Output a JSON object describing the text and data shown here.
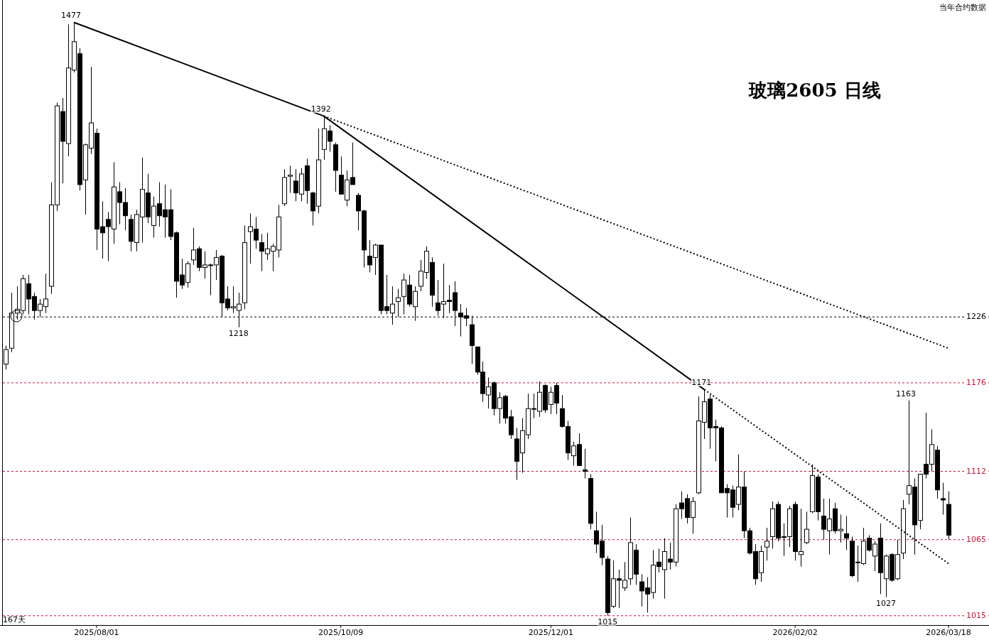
{
  "chart_data": {
    "type": "candlestick",
    "title": "玻璃2605 日线",
    "log": true,
    "ylim": [
      1009,
      1498
    ],
    "yticks": [
      1015,
      1065,
      1112,
      1176,
      1226
    ],
    "categories": [
      null,
      null,
      null,
      null,
      null,
      null,
      null,
      null,
      null,
      null,
      null,
      null,
      null,
      null,
      null,
      null,
      "2025/08/01",
      null,
      null,
      null,
      null,
      null,
      null,
      null,
      null,
      null,
      null,
      null,
      null,
      null,
      null,
      null,
      null,
      null,
      null,
      null,
      null,
      null,
      null,
      null,
      null,
      null,
      null,
      null,
      null,
      null,
      null,
      null,
      null,
      null,
      null,
      null,
      null,
      null,
      null,
      null,
      null,
      null,
      null,
      "2025/10/09",
      null,
      null,
      null,
      null,
      null,
      null,
      null,
      null,
      null,
      null,
      null,
      null,
      null,
      null,
      null,
      null,
      null,
      null,
      null,
      null,
      null,
      null,
      null,
      null,
      null,
      null,
      null,
      null,
      null,
      null,
      null,
      null,
      null,
      null,
      null,
      null,
      "2025/12/01",
      null,
      null,
      null,
      null,
      null,
      null,
      null,
      null,
      null,
      null,
      null,
      null,
      null,
      null,
      null,
      null,
      null,
      null,
      null,
      null,
      null,
      null,
      null,
      null,
      null,
      null,
      null,
      null,
      null,
      null,
      null,
      null,
      null,
      null,
      null,
      null,
      null,
      null,
      null,
      null,
      null,
      null,
      "2026/02/02",
      null,
      null,
      null,
      null,
      null,
      null,
      null,
      null,
      null,
      null,
      null,
      null,
      null,
      null,
      null,
      null,
      null,
      null,
      null,
      null,
      null,
      null,
      null,
      null,
      null,
      null,
      "2026/03/18"
    ],
    "ohlc": [
      [
        1190,
        1204,
        1186,
        1201
      ],
      [
        1202,
        1245,
        1199,
        1229
      ],
      [
        1229,
        1250,
        1224,
        1232
      ],
      [
        1231,
        1259,
        1228,
        1256
      ],
      [
        1252,
        1259,
        1228,
        1240
      ],
      [
        1242,
        1245,
        1224,
        1231
      ],
      [
        1231,
        1240,
        1226,
        1236
      ],
      [
        1234,
        1260,
        1229,
        1240
      ],
      [
        1250,
        1335,
        1244,
        1316
      ],
      [
        1316,
        1404,
        1311,
        1401
      ],
      [
        1396,
        1408,
        1334,
        1370
      ],
      [
        1368,
        1475,
        1357,
        1435
      ],
      [
        1433,
        1477,
        1431,
        1459
      ],
      [
        1448,
        1453,
        1328,
        1333
      ],
      [
        1337,
        1368,
        1308,
        1367
      ],
      [
        1364,
        1436,
        1359,
        1386
      ],
      [
        1377,
        1381,
        1279,
        1296
      ],
      [
        1298,
        1319,
        1272,
        1293
      ],
      [
        1304,
        1310,
        1270,
        1298
      ],
      [
        1296,
        1352,
        1284,
        1331
      ],
      [
        1327,
        1335,
        1300,
        1318
      ],
      [
        1318,
        1330,
        1295,
        1307
      ],
      [
        1304,
        1308,
        1278,
        1286
      ],
      [
        1285,
        1312,
        1278,
        1308
      ],
      [
        1306,
        1356,
        1285,
        1329
      ],
      [
        1326,
        1342,
        1301,
        1306
      ],
      [
        1299,
        1323,
        1289,
        1315
      ],
      [
        1317,
        1335,
        1298,
        1307
      ],
      [
        1312,
        1333,
        1289,
        1306
      ],
      [
        1312,
        1329,
        1287,
        1290
      ],
      [
        1293,
        1294,
        1241,
        1254
      ],
      [
        1259,
        1272,
        1248,
        1251
      ],
      [
        1253,
        1270,
        1249,
        1268
      ],
      [
        1271,
        1297,
        1267,
        1279
      ],
      [
        1280,
        1282,
        1262,
        1265
      ],
      [
        1265,
        1278,
        1256,
        1267
      ],
      [
        1267,
        1268,
        1243,
        1267
      ],
      [
        1267,
        1279,
        1255,
        1273
      ],
      [
        1274,
        1275,
        1226,
        1237
      ],
      [
        1240,
        1250,
        1231,
        1233
      ],
      [
        1233,
        1250,
        1229,
        1234
      ],
      [
        1231,
        1245,
        1218,
        1236
      ],
      [
        1237,
        1299,
        1232,
        1285
      ],
      [
        1294,
        1309,
        1268,
        1298
      ],
      [
        1296,
        1306,
        1280,
        1287
      ],
      [
        1285,
        1292,
        1262,
        1278
      ],
      [
        1276,
        1293,
        1271,
        1280
      ],
      [
        1278,
        1284,
        1262,
        1282
      ],
      [
        1279,
        1316,
        1273,
        1306
      ],
      [
        1317,
        1346,
        1315,
        1339
      ],
      [
        1340,
        1349,
        1326,
        1341
      ],
      [
        1336,
        1346,
        1319,
        1326
      ],
      [
        1325,
        1347,
        1319,
        1342
      ],
      [
        1349,
        1355,
        1317,
        1328
      ],
      [
        1326,
        1327,
        1299,
        1311
      ],
      [
        1315,
        1381,
        1309,
        1354
      ],
      [
        1363,
        1392,
        1354,
        1381
      ],
      [
        1379,
        1384,
        1361,
        1370
      ],
      [
        1367,
        1369,
        1327,
        1345
      ],
      [
        1341,
        1357,
        1325,
        1325
      ],
      [
        1320,
        1345,
        1315,
        1337
      ],
      [
        1339,
        1369,
        1333,
        1333
      ],
      [
        1324,
        1326,
        1295,
        1311
      ],
      [
        1311,
        1312,
        1265,
        1279
      ],
      [
        1274,
        1287,
        1261,
        1267
      ],
      [
        1273,
        1284,
        1259,
        1283
      ],
      [
        1283,
        1283,
        1228,
        1231
      ],
      [
        1234,
        1259,
        1228,
        1231
      ],
      [
        1229,
        1250,
        1220,
        1236
      ],
      [
        1238,
        1248,
        1226,
        1241
      ],
      [
        1242,
        1260,
        1228,
        1255
      ],
      [
        1251,
        1259,
        1234,
        1236
      ],
      [
        1234,
        1250,
        1223,
        1246
      ],
      [
        1250,
        1271,
        1246,
        1262
      ],
      [
        1261,
        1282,
        1256,
        1278
      ],
      [
        1269,
        1273,
        1234,
        1243
      ],
      [
        1237,
        1255,
        1227,
        1231
      ],
      [
        1236,
        1268,
        1225,
        1238
      ],
      [
        1239,
        1251,
        1229,
        1238
      ],
      [
        1245,
        1254,
        1219,
        1231
      ],
      [
        1229,
        1236,
        1211,
        1226
      ],
      [
        1227,
        1233,
        1219,
        1225
      ],
      [
        1220,
        1227,
        1190,
        1204
      ],
      [
        1203,
        1203,
        1182,
        1184
      ],
      [
        1184,
        1192,
        1162,
        1168
      ],
      [
        1167,
        1180,
        1157,
        1173
      ],
      [
        1176,
        1177,
        1152,
        1157
      ],
      [
        1157,
        1169,
        1146,
        1165
      ],
      [
        1166,
        1167,
        1146,
        1150
      ],
      [
        1151,
        1156,
        1135,
        1138
      ],
      [
        1135,
        1143,
        1106,
        1119
      ],
      [
        1125,
        1150,
        1111,
        1141
      ],
      [
        1138,
        1168,
        1135,
        1157
      ],
      [
        1157,
        1168,
        1150,
        1157
      ],
      [
        1155,
        1177,
        1151,
        1169
      ],
      [
        1174,
        1175,
        1154,
        1156
      ],
      [
        1160,
        1173,
        1153,
        1169
      ],
      [
        1174,
        1176,
        1153,
        1161
      ],
      [
        1157,
        1167,
        1143,
        1144
      ],
      [
        1144,
        1148,
        1120,
        1125
      ],
      [
        1123,
        1133,
        1116,
        1130
      ],
      [
        1131,
        1139,
        1116,
        1116
      ],
      [
        1113,
        1128,
        1107,
        1112
      ],
      [
        1107,
        1110,
        1072,
        1076
      ],
      [
        1071,
        1084,
        1056,
        1062
      ],
      [
        1064,
        1075,
        1048,
        1053
      ],
      [
        1052,
        1054,
        1015,
        1017
      ],
      [
        1021,
        1051,
        1020,
        1039
      ],
      [
        1039,
        1045,
        1020,
        1038
      ],
      [
        1033,
        1050,
        1031,
        1038
      ],
      [
        1039,
        1080,
        1035,
        1063
      ],
      [
        1058,
        1062,
        1035,
        1042
      ],
      [
        1037,
        1042,
        1021,
        1031
      ],
      [
        1033,
        1040,
        1017,
        1029
      ],
      [
        1030,
        1058,
        1026,
        1048
      ],
      [
        1050,
        1059,
        1043,
        1047
      ],
      [
        1045,
        1066,
        1026,
        1057
      ],
      [
        1052,
        1063,
        1045,
        1050
      ],
      [
        1050,
        1089,
        1047,
        1086
      ],
      [
        1090,
        1098,
        1079,
        1086
      ],
      [
        1093,
        1096,
        1076,
        1080
      ],
      [
        1080,
        1094,
        1069,
        1091
      ],
      [
        1097,
        1166,
        1096,
        1148
      ],
      [
        1147,
        1171,
        1135,
        1162
      ],
      [
        1164,
        1167,
        1128,
        1143
      ],
      [
        1144,
        1149,
        1119,
        1143
      ],
      [
        1143,
        1144,
        1097,
        1097
      ],
      [
        1100,
        1103,
        1080,
        1097
      ],
      [
        1099,
        1102,
        1080,
        1087
      ],
      [
        1089,
        1124,
        1085,
        1101
      ],
      [
        1101,
        1112,
        1066,
        1071
      ],
      [
        1071,
        1073,
        1055,
        1056
      ],
      [
        1057,
        1062,
        1035,
        1039
      ],
      [
        1043,
        1061,
        1037,
        1057
      ],
      [
        1060,
        1073,
        1051,
        1064
      ],
      [
        1067,
        1091,
        1059,
        1086
      ],
      [
        1089,
        1091,
        1064,
        1066
      ],
      [
        1067,
        1076,
        1054,
        1067
      ],
      [
        1067,
        1088,
        1060,
        1086
      ],
      [
        1089,
        1091,
        1051,
        1057
      ],
      [
        1055,
        1086,
        1047,
        1057
      ],
      [
        1063,
        1084,
        1062,
        1072
      ],
      [
        1084,
        1117,
        1083,
        1109
      ],
      [
        1108,
        1110,
        1078,
        1084
      ],
      [
        1081,
        1093,
        1065,
        1072
      ],
      [
        1071,
        1093,
        1055,
        1079
      ],
      [
        1086,
        1090,
        1069,
        1071
      ],
      [
        1071,
        1082,
        1063,
        1072
      ],
      [
        1069,
        1081,
        1058,
        1066
      ],
      [
        1064,
        1067,
        1040,
        1041
      ],
      [
        1050,
        1061,
        1037,
        1050
      ],
      [
        1049,
        1073,
        1048,
        1064
      ],
      [
        1066,
        1068,
        1057,
        1058
      ],
      [
        1054,
        1064,
        1044,
        1062
      ],
      [
        1066,
        1076,
        1029,
        1043
      ],
      [
        1039,
        1055,
        1027,
        1054
      ],
      [
        1055,
        1056,
        1037,
        1038
      ],
      [
        1039,
        1065,
        1038,
        1055
      ],
      [
        1056,
        1092,
        1052,
        1086
      ],
      [
        1096,
        1163,
        1089,
        1102
      ],
      [
        1101,
        1107,
        1055,
        1075
      ],
      [
        1078,
        1110,
        1072,
        1110
      ],
      [
        1117,
        1154,
        1107,
        1110
      ],
      [
        1117,
        1142,
        1112,
        1131
      ],
      [
        1127,
        1130,
        1093,
        1099
      ],
      [
        1093,
        1104,
        1082,
        1092
      ],
      [
        1089,
        1098,
        1065,
        1068
      ]
    ],
    "series": [
      {
        "type": "line",
        "color": "#000000",
        "line_style": "solid",
        "values": [
          null,
          null,
          null,
          null,
          null,
          null,
          null,
          null,
          null,
          null,
          null,
          null,
          1477,
          null,
          null,
          null,
          null,
          null,
          null,
          null,
          null,
          null,
          null,
          null,
          null,
          null,
          null,
          null,
          null,
          null,
          null,
          null,
          null,
          null,
          null,
          null,
          null,
          null,
          null,
          null,
          null,
          null,
          null,
          null,
          null,
          null,
          null,
          null,
          null,
          null,
          null,
          null,
          null,
          null,
          null,
          null,
          1392,
          null,
          null,
          null,
          null,
          null,
          null,
          null,
          null,
          null,
          null,
          null,
          null,
          null,
          null,
          null,
          null,
          null,
          null,
          null,
          null,
          null,
          null,
          null,
          null,
          null,
          null,
          null,
          null,
          null,
          null,
          null,
          null,
          null,
          null,
          null,
          null,
          null,
          null,
          null,
          null,
          null,
          null,
          null,
          null,
          null,
          null,
          null,
          null,
          null,
          null,
          null,
          null,
          null,
          null,
          null,
          null,
          null,
          null,
          null,
          null,
          null,
          null,
          null,
          null,
          null,
          null,
          1171,
          null,
          null,
          null,
          null,
          null,
          null,
          null,
          null,
          null,
          null,
          null,
          null,
          null,
          null,
          null,
          null,
          null,
          null,
          null,
          null,
          null,
          null,
          null,
          null,
          null,
          null,
          null,
          null,
          null,
          null,
          null,
          null,
          null,
          null,
          null,
          null,
          null,
          null,
          null,
          null,
          null,
          null,
          null
        ]
      },
      {
        "type": "line",
        "color": "#000000",
        "line_style": "dotted",
        "values": [
          null,
          null,
          null,
          null,
          null,
          null,
          null,
          null,
          null,
          null,
          null,
          null,
          null,
          null,
          null,
          null,
          null,
          null,
          null,
          null,
          null,
          null,
          null,
          null,
          null,
          null,
          null,
          null,
          null,
          null,
          null,
          null,
          null,
          null,
          null,
          null,
          null,
          null,
          null,
          null,
          null,
          null,
          null,
          null,
          null,
          null,
          null,
          null,
          null,
          null,
          null,
          null,
          null,
          null,
          null,
          null,
          1392,
          null,
          null,
          null,
          null,
          null,
          null,
          null,
          null,
          null,
          null,
          null,
          null,
          null,
          null,
          null,
          null,
          null,
          null,
          null,
          null,
          null,
          null,
          null,
          null,
          null,
          null,
          null,
          null,
          null,
          null,
          null,
          null,
          null,
          null,
          null,
          null,
          null,
          null,
          null,
          null,
          null,
          null,
          null,
          null,
          null,
          null,
          null,
          null,
          null,
          null,
          null,
          null,
          null,
          null,
          null,
          null,
          null,
          null,
          null,
          null,
          null,
          null,
          null,
          null,
          null,
          null,
          null,
          null,
          null,
          null,
          null,
          null,
          null,
          null,
          null,
          null,
          null,
          null,
          null,
          null,
          null,
          null,
          null,
          null,
          null,
          null,
          null,
          null,
          null,
          null,
          null,
          null,
          null,
          null,
          null,
          null,
          null,
          null,
          null,
          null,
          null,
          null,
          null,
          null,
          null,
          null,
          null,
          null,
          null,
          1202
        ]
      },
      {
        "type": "line",
        "color": "#000000",
        "line_style": "dotted",
        "values": [
          null,
          null,
          null,
          null,
          null,
          null,
          null,
          null,
          null,
          null,
          null,
          null,
          null,
          null,
          null,
          null,
          null,
          null,
          null,
          null,
          null,
          null,
          null,
          null,
          null,
          null,
          null,
          null,
          null,
          null,
          null,
          null,
          null,
          null,
          null,
          null,
          null,
          null,
          null,
          null,
          null,
          null,
          null,
          null,
          null,
          null,
          null,
          null,
          null,
          null,
          null,
          null,
          null,
          null,
          null,
          null,
          null,
          null,
          null,
          null,
          null,
          null,
          null,
          null,
          null,
          null,
          null,
          null,
          null,
          null,
          null,
          null,
          null,
          null,
          null,
          null,
          null,
          null,
          null,
          null,
          null,
          null,
          null,
          null,
          null,
          null,
          null,
          null,
          null,
          null,
          null,
          null,
          null,
          null,
          null,
          null,
          null,
          null,
          null,
          null,
          null,
          null,
          null,
          null,
          null,
          null,
          null,
          null,
          null,
          null,
          null,
          null,
          null,
          null,
          null,
          null,
          null,
          null,
          null,
          null,
          null,
          null,
          null,
          1171,
          null,
          null,
          null,
          null,
          null,
          null,
          null,
          null,
          null,
          null,
          null,
          null,
          null,
          null,
          null,
          null,
          null,
          null,
          null,
          null,
          null,
          null,
          null,
          null,
          null,
          null,
          null,
          null,
          null,
          null,
          null,
          null,
          null,
          null,
          null,
          null,
          null,
          null,
          null,
          null,
          null,
          null,
          1049
        ]
      }
    ],
    "ref_lines": [
      {
        "axis": "y",
        "value": 1226,
        "color": "#000000",
        "line_style": "dashed"
      },
      {
        "axis": "y",
        "value": 1176,
        "color": "#cc1133",
        "line_style": "dashed"
      },
      {
        "axis": "y",
        "value": 1112,
        "color": "#cc1133",
        "line_style": "dashed"
      },
      {
        "axis": "y",
        "value": 1065,
        "color": "#cc1133",
        "line_style": "dashed"
      },
      {
        "axis": "y",
        "value": 1015,
        "color": "#cc1133",
        "line_style": "dashed"
      }
    ],
    "annotations": [
      "当年合约数据",
      "167天",
      {
        "text": "1477",
        "y": 1477
      },
      {
        "text": "1392",
        "y": 1392
      },
      {
        "text": "1218",
        "y": 1218
      },
      {
        "text": "1171",
        "y": 1171
      },
      {
        "text": "1163",
        "y": 1163
      },
      {
        "text": "1027",
        "y": 1027
      },
      {
        "text": "1015",
        "y": 1015
      }
    ]
  }
}
